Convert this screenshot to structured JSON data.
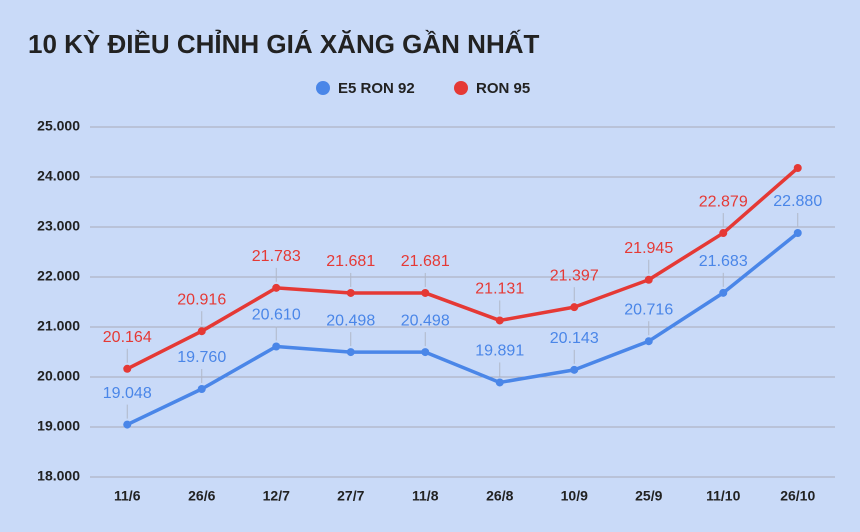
{
  "chart_data": {
    "type": "line",
    "title": "10 KỲ ĐIỀU CHỈNH GIÁ XĂNG GẦN NHẤT",
    "categories": [
      "11/6",
      "26/6",
      "12/7",
      "27/7",
      "11/8",
      "26/8",
      "10/9",
      "25/9",
      "11/10",
      "26/10"
    ],
    "series": [
      {
        "name": "E5 RON 92",
        "color": "#4a86e8",
        "values": [
          19048,
          19760,
          20610,
          20498,
          20498,
          19891,
          20143,
          20716,
          21683,
          22880
        ],
        "value_labels": [
          "19.048",
          "19.760",
          "20.610",
          "20.498",
          "20.498",
          "19.891",
          "20.143",
          "20.716",
          "21.683",
          "22.880"
        ]
      },
      {
        "name": "RON 95",
        "color": "#e53935",
        "values": [
          20164,
          20916,
          21783,
          21681,
          21681,
          21131,
          21397,
          21945,
          22879,
          24180
        ],
        "value_labels": [
          "20.164",
          "20.916",
          "21.783",
          "21.681",
          "21.681",
          "21.131",
          "21.397",
          "21.945",
          "22.879",
          null
        ]
      }
    ],
    "ylim": [
      18000,
      25000
    ],
    "yticks": [
      {
        "value": 18000,
        "label": "18.000"
      },
      {
        "value": 19000,
        "label": "19.000"
      },
      {
        "value": 20000,
        "label": "20.000"
      },
      {
        "value": 21000,
        "label": "21.000"
      },
      {
        "value": 22000,
        "label": "22.000"
      },
      {
        "value": 23000,
        "label": "23.000"
      },
      {
        "value": 24000,
        "label": "24.000"
      },
      {
        "value": 25000,
        "label": "25.000"
      }
    ],
    "grid": true,
    "legend": "top"
  }
}
